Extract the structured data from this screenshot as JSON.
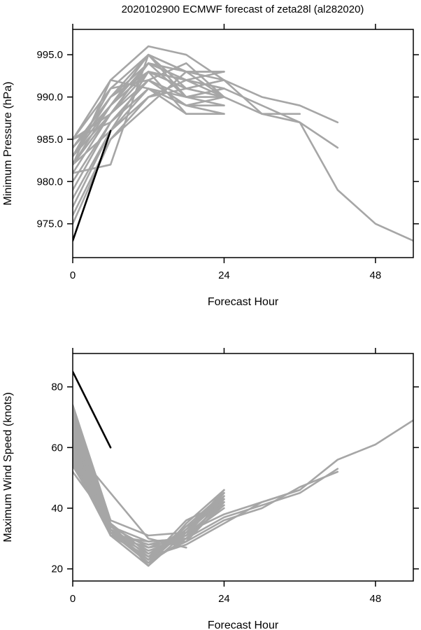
{
  "figure_title": "2020102900 ECMWF forecast of zeta28l (al282020)",
  "colors": {
    "ensemble": "#a6a6a6",
    "observed": "#000000",
    "axes": "#000000"
  },
  "chart_data": [
    {
      "type": "line",
      "title": "",
      "xlabel": "Forecast Hour",
      "ylabel": "Minimum Pressure (hPa)",
      "xlim": [
        0,
        54
      ],
      "ylim": [
        971,
        998
      ],
      "xticks": [
        0,
        24,
        48
      ],
      "xtick_labels": [
        "0",
        "24",
        "48"
      ],
      "yticks": [
        975,
        980,
        985,
        990,
        995
      ],
      "ytick_labels": [
        "975.0",
        "980.0",
        "985.0",
        "990.0",
        "995.0"
      ],
      "grid": false,
      "legend": "none",
      "observed": {
        "x": [
          0,
          6
        ],
        "y": [
          973,
          986
        ]
      },
      "ensemble": [
        {
          "x": [
            0,
            6,
            12,
            18,
            24,
            30,
            36,
            42,
            48,
            54
          ],
          "y": [
            985,
            992,
            996,
            995,
            992,
            988,
            987,
            979,
            975,
            973
          ]
        },
        {
          "x": [
            0,
            6,
            12,
            18,
            24,
            30,
            36,
            42
          ],
          "y": [
            984,
            990,
            995,
            993,
            992,
            990,
            989,
            987
          ]
        },
        {
          "x": [
            0,
            6,
            12,
            18,
            24,
            30,
            36,
            42
          ],
          "y": [
            983,
            989,
            994,
            992,
            991,
            989,
            987,
            984
          ]
        },
        {
          "x": [
            0,
            6,
            12,
            18,
            24,
            30,
            36
          ],
          "y": [
            982,
            988,
            993,
            991,
            990,
            988,
            988
          ]
        },
        {
          "x": [
            0,
            6,
            12,
            18,
            24
          ],
          "y": [
            985,
            991,
            995,
            993,
            993
          ]
        },
        {
          "x": [
            0,
            6,
            12,
            18,
            24
          ],
          "y": [
            984,
            990,
            994,
            993,
            993
          ]
        },
        {
          "x": [
            0,
            6,
            12,
            18,
            24
          ],
          "y": [
            983,
            990,
            993,
            992,
            991
          ]
        },
        {
          "x": [
            0,
            6,
            12,
            18,
            24
          ],
          "y": [
            982,
            989,
            993,
            991,
            990
          ]
        },
        {
          "x": [
            0,
            6,
            12,
            18,
            24
          ],
          "y": [
            981,
            988,
            992,
            990,
            990
          ]
        },
        {
          "x": [
            0,
            6,
            12,
            18,
            24
          ],
          "y": [
            980,
            987,
            992,
            989,
            988
          ]
        },
        {
          "x": [
            0,
            6,
            12,
            18,
            24
          ],
          "y": [
            979,
            987,
            991,
            988,
            988
          ]
        },
        {
          "x": [
            0,
            6,
            12,
            18,
            24
          ],
          "y": [
            978,
            986,
            991,
            989,
            989
          ]
        },
        {
          "x": [
            0,
            6,
            12,
            18,
            24
          ],
          "y": [
            977,
            986,
            990,
            991,
            992
          ]
        },
        {
          "x": [
            0,
            6,
            12,
            18,
            24
          ],
          "y": [
            976,
            985,
            990,
            992,
            991
          ]
        },
        {
          "x": [
            0,
            6,
            12,
            18,
            24
          ],
          "y": [
            975,
            985,
            989,
            993,
            990
          ]
        },
        {
          "x": [
            0,
            6,
            12,
            18,
            24
          ],
          "y": [
            985,
            988,
            994,
            990,
            989
          ]
        },
        {
          "x": [
            0,
            6,
            12,
            18,
            24
          ],
          "y": [
            984,
            989,
            995,
            990,
            991
          ]
        },
        {
          "x": [
            0,
            6,
            12,
            18,
            24
          ],
          "y": [
            983,
            991,
            992,
            994,
            990
          ]
        },
        {
          "x": [
            0,
            6,
            12,
            18,
            24
          ],
          "y": [
            982,
            986,
            993,
            992,
            990
          ]
        },
        {
          "x": [
            0,
            6,
            12,
            18,
            24
          ],
          "y": [
            981,
            982,
            995,
            991,
            992
          ]
        },
        {
          "x": [
            0,
            6,
            12,
            18,
            24
          ],
          "y": [
            984,
            990,
            993,
            988,
            988
          ]
        },
        {
          "x": [
            0,
            6,
            12,
            18,
            24
          ],
          "y": [
            983,
            988,
            994,
            992,
            993
          ]
        },
        {
          "x": [
            0,
            6,
            12,
            18,
            24
          ],
          "y": [
            982,
            992,
            991,
            990,
            991
          ]
        },
        {
          "x": [
            0,
            6,
            12,
            18,
            24
          ],
          "y": [
            985,
            987,
            992,
            989,
            990
          ]
        }
      ]
    },
    {
      "type": "line",
      "title": "",
      "xlabel": "Forecast Hour",
      "ylabel": "Maximum Wind Speed (knots)",
      "xlim": [
        0,
        54
      ],
      "ylim": [
        16,
        91
      ],
      "xticks": [
        0,
        24,
        48
      ],
      "xtick_labels": [
        "0",
        "24",
        "48"
      ],
      "yticks": [
        20,
        40,
        60,
        80
      ],
      "ytick_labels": [
        "20",
        "40",
        "60",
        "80"
      ],
      "grid": false,
      "legend": "none",
      "observed": {
        "x": [
          0,
          6
        ],
        "y": [
          85,
          60
        ]
      },
      "ensemble": [
        {
          "x": [
            0,
            6,
            12,
            18,
            24,
            30,
            36,
            42,
            48,
            54
          ],
          "y": [
            52,
            35,
            21,
            32,
            38,
            42,
            46,
            56,
            61,
            69
          ]
        },
        {
          "x": [
            0,
            6,
            12,
            18,
            24,
            30,
            36,
            42
          ],
          "y": [
            54,
            33,
            22,
            30,
            37,
            41,
            45,
            53
          ]
        },
        {
          "x": [
            0,
            6,
            12,
            18,
            24,
            30,
            36,
            42
          ],
          "y": [
            56,
            32,
            23,
            29,
            36,
            40,
            47,
            52
          ]
        },
        {
          "x": [
            0,
            6,
            12,
            18,
            24,
            30,
            36
          ],
          "y": [
            55,
            31,
            24,
            28,
            35,
            42,
            46
          ]
        },
        {
          "x": [
            0,
            6,
            12,
            18,
            24
          ],
          "y": [
            57,
            31,
            21,
            35,
            46
          ]
        },
        {
          "x": [
            0,
            6,
            12,
            18,
            24
          ],
          "y": [
            58,
            32,
            22,
            34,
            45
          ]
        },
        {
          "x": [
            0,
            6,
            12,
            18,
            24
          ],
          "y": [
            59,
            33,
            23,
            33,
            44
          ]
        },
        {
          "x": [
            0,
            6,
            12,
            18,
            24
          ],
          "y": [
            60,
            31,
            24,
            32,
            43
          ]
        },
        {
          "x": [
            0,
            6,
            12,
            18,
            24
          ],
          "y": [
            61,
            32,
            25,
            31,
            42
          ]
        },
        {
          "x": [
            0,
            6,
            12,
            18,
            24
          ],
          "y": [
            62,
            33,
            26,
            30,
            41
          ]
        },
        {
          "x": [
            0,
            6,
            12,
            18,
            24
          ],
          "y": [
            63,
            34,
            27,
            31,
            40
          ]
        },
        {
          "x": [
            0,
            6,
            12,
            18,
            24
          ],
          "y": [
            64,
            32,
            28,
            29,
            44
          ]
        },
        {
          "x": [
            0,
            6,
            12,
            18,
            24
          ],
          "y": [
            65,
            31,
            29,
            30,
            43
          ]
        },
        {
          "x": [
            0,
            6,
            12,
            18,
            24
          ],
          "y": [
            66,
            33,
            22,
            33,
            45
          ]
        },
        {
          "x": [
            0,
            6,
            12,
            18,
            24
          ],
          "y": [
            67,
            32,
            23,
            36,
            42
          ]
        },
        {
          "x": [
            0,
            6,
            12,
            18,
            24
          ],
          "y": [
            68,
            34,
            24,
            34,
            41
          ]
        },
        {
          "x": [
            0,
            6,
            12,
            18,
            24
          ],
          "y": [
            69,
            35,
            25,
            32,
            44
          ]
        },
        {
          "x": [
            0,
            6,
            12,
            18,
            24
          ],
          "y": [
            70,
            33,
            26,
            30,
            43
          ]
        },
        {
          "x": [
            0,
            6,
            12,
            18,
            24
          ],
          "y": [
            71,
            31,
            27,
            29,
            42
          ]
        },
        {
          "x": [
            0,
            6,
            12,
            18,
            24
          ],
          "y": [
            72,
            32,
            28,
            31,
            45
          ]
        },
        {
          "x": [
            0,
            6,
            12,
            18,
            24
          ],
          "y": [
            74,
            36,
            31,
            32,
            46
          ]
        },
        {
          "x": [
            0,
            6,
            12,
            18
          ],
          "y": [
            60,
            45,
            30,
            27
          ]
        },
        {
          "x": [
            0,
            6,
            12,
            18,
            24
          ],
          "y": [
            73,
            34,
            29,
            30,
            43
          ]
        }
      ]
    }
  ]
}
